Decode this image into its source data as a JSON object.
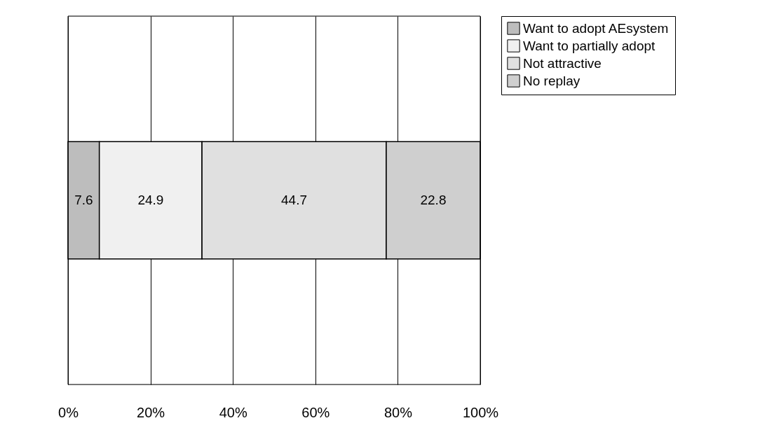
{
  "chart_data": {
    "type": "bar",
    "orientation": "horizontal",
    "stacked": true,
    "categories": [
      null
    ],
    "series": [
      {
        "name": "Want to adopt AEsystem",
        "color": "#bdbdbd",
        "values": [
          7.6
        ]
      },
      {
        "name": "Want to partially adopt",
        "color": "#f0f0f0",
        "values": [
          24.9
        ]
      },
      {
        "name": "Not attractive",
        "color": "#e0e0e0",
        "values": [
          44.7
        ]
      },
      {
        "name": "No replay",
        "color": "#cfcfcf",
        "values": [
          22.8
        ]
      }
    ],
    "xlim": [
      0,
      100
    ],
    "xticks": [
      {
        "value": 0,
        "label": "0%"
      },
      {
        "value": 20,
        "label": "20%"
      },
      {
        "value": 40,
        "label": "40%"
      },
      {
        "value": 60,
        "label": "60%"
      },
      {
        "value": 80,
        "label": "80%"
      },
      {
        "value": 100,
        "label": "100%"
      }
    ],
    "grid": "x",
    "legend": "right",
    "data_labels": true,
    "tick_labels": "x"
  }
}
